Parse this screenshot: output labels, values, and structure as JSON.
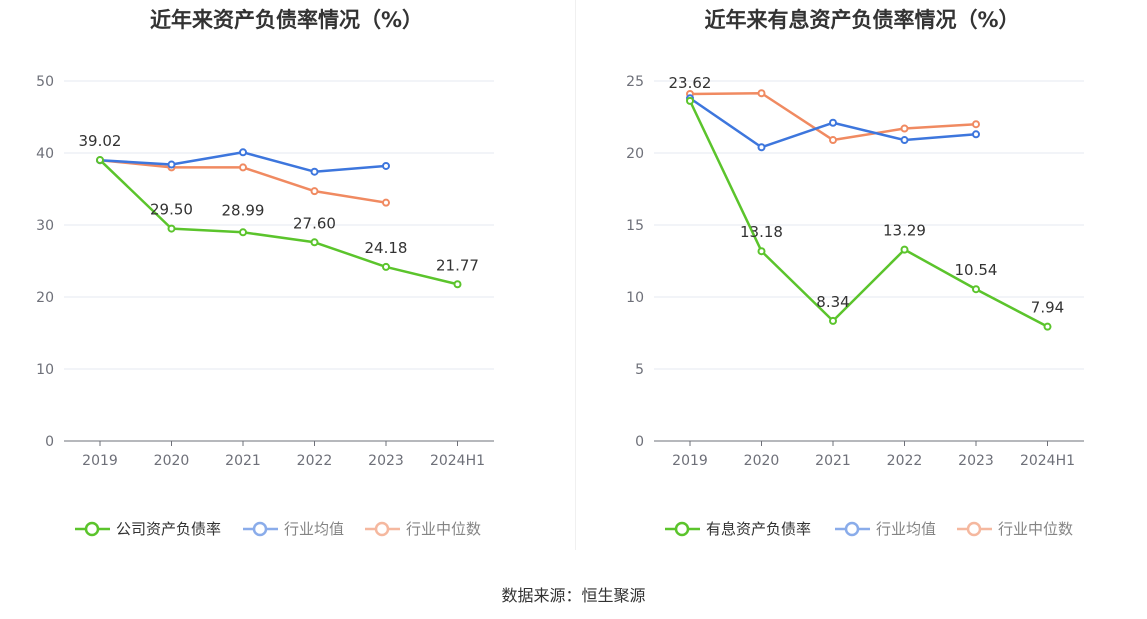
{
  "source": "数据来源：恒生聚源",
  "chart_data": [
    {
      "type": "line",
      "title": "近年来资产负债率情况（%）",
      "categories": [
        "2019",
        "2020",
        "2021",
        "2022",
        "2023",
        "2024H1"
      ],
      "ylim": [
        0,
        50
      ],
      "yticks": [
        0,
        10,
        20,
        30,
        40,
        50
      ],
      "grid": true,
      "legend_position": "bottom",
      "series": [
        {
          "name": "公司资产负债率",
          "color": "#5bc42c",
          "values": [
            39.02,
            29.5,
            28.99,
            27.6,
            24.18,
            21.77
          ],
          "labels": [
            "39.02",
            "29.50",
            "28.99",
            "27.60",
            "24.18",
            "21.77"
          ]
        },
        {
          "name": "行业均值",
          "color": "#3d76dd",
          "values": [
            39.0,
            38.4,
            40.1,
            37.4,
            38.2,
            null
          ]
        },
        {
          "name": "行业中位数",
          "color": "#f08a61",
          "values": [
            39.0,
            38.0,
            38.0,
            34.7,
            33.1,
            null
          ]
        }
      ]
    },
    {
      "type": "line",
      "title": "近年来有息资产负债率情况（%）",
      "categories": [
        "2019",
        "2020",
        "2021",
        "2022",
        "2023",
        "2024H1"
      ],
      "ylim": [
        0,
        25
      ],
      "yticks": [
        0,
        5,
        10,
        15,
        20,
        25
      ],
      "grid": true,
      "legend_position": "bottom",
      "series": [
        {
          "name": "有息资产负债率",
          "color": "#5bc42c",
          "values": [
            23.62,
            13.18,
            8.34,
            13.29,
            10.54,
            7.94
          ],
          "labels": [
            "23.62",
            "13.18",
            "8.34",
            "13.29",
            "10.54",
            "7.94"
          ]
        },
        {
          "name": "行业均值",
          "color": "#3d76dd",
          "values": [
            23.8,
            20.4,
            22.1,
            20.9,
            21.3,
            null
          ]
        },
        {
          "name": "行业中位数",
          "color": "#f08a61",
          "values": [
            24.1,
            24.15,
            20.9,
            21.7,
            22.0,
            null
          ]
        }
      ]
    }
  ]
}
